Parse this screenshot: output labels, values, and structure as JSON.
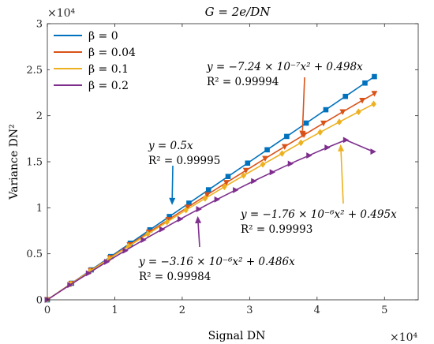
{
  "chart_data": {
    "type": "line",
    "title": "G = 2e/DN",
    "xlabel": "Signal DN",
    "ylabel": "Variance DN²",
    "x_exponent_label": "×10⁴",
    "y_exponent_label": "×10⁴",
    "xlim": [
      0,
      55000
    ],
    "ylim": [
      0,
      30000
    ],
    "x_ticks": [
      0,
      10000,
      20000,
      30000,
      40000,
      50000
    ],
    "x_tick_labels": [
      "0",
      "1",
      "2",
      "3",
      "4",
      "5"
    ],
    "y_ticks": [
      0,
      5000,
      10000,
      15000,
      20000,
      25000,
      30000
    ],
    "y_tick_labels": [
      "0",
      "0.5",
      "1",
      "1.5",
      "2",
      "2.5",
      "3"
    ],
    "grid": false,
    "legend_position": "top-left",
    "series": [
      {
        "name": "β = 0",
        "color": "#0072BD",
        "marker": "square",
        "x": [
          0,
          3600,
          6500,
          9400,
          12300,
          15200,
          18100,
          21000,
          23900,
          26800,
          29700,
          32600,
          35500,
          38400,
          41300,
          44200,
          47100,
          48500
        ],
        "y": [
          0,
          1800,
          3250,
          4700,
          6150,
          7600,
          9050,
          10500,
          11950,
          13400,
          14850,
          16300,
          17750,
          19200,
          20650,
          22100,
          23550,
          24250
        ]
      },
      {
        "name": "β = 0.04",
        "color": "#D95319",
        "marker": "triangle-down",
        "x": [
          0,
          3550,
          6450,
          9300,
          12200,
          15050,
          17950,
          20800,
          23700,
          26550,
          29450,
          32300,
          35200,
          38050,
          40950,
          43800,
          46700,
          48500
        ],
        "y": [
          0,
          1760,
          3180,
          4570,
          5970,
          7340,
          8710,
          10060,
          11410,
          12730,
          14050,
          15350,
          16640,
          17910,
          19180,
          20420,
          21660,
          22410
        ]
      },
      {
        "name": "β = 0.1",
        "color": "#EDB120",
        "marker": "diamond",
        "x": [
          0,
          3500,
          6350,
          9200,
          12050,
          14900,
          17750,
          20550,
          23400,
          26250,
          29100,
          31950,
          34800,
          37600,
          40450,
          43300,
          46150,
          48400
        ],
        "y": [
          0,
          1720,
          3100,
          4470,
          5820,
          7150,
          8460,
          9750,
          11020,
          12270,
          13500,
          14710,
          15890,
          17060,
          18200,
          19320,
          20420,
          21270
        ]
      },
      {
        "name": "β = 0.2",
        "color": "#7E2F8E",
        "marker": "triangle-right",
        "x": [
          0,
          3350,
          6100,
          8800,
          11550,
          14250,
          17000,
          19700,
          22450,
          25150,
          27900,
          30600,
          33350,
          36050,
          38800,
          41500,
          44250,
          48300
        ],
        "y": [
          0,
          1610,
          2880,
          4120,
          5340,
          6510,
          7660,
          8770,
          9850,
          10900,
          11920,
          12900,
          13860,
          14790,
          15680,
          16540,
          17370,
          16100
        ]
      }
    ],
    "annotations": [
      {
        "line1": "y = 0.5x",
        "line2": "R² = 0.99995",
        "color": "#0072BD",
        "arrow_tip": [
          18500,
          10300
        ]
      },
      {
        "line1": "y = −7.24 × 10⁻⁷x² + 0.498x",
        "line2": "R² = 0.99994",
        "color": "#D95319",
        "arrow_tip": [
          37800,
          17600
        ]
      },
      {
        "line1": "y = −1.76 × 10⁻⁶x² + 0.495x",
        "line2": "R² = 0.99993",
        "color": "#EDB120",
        "arrow_tip": [
          43500,
          16900
        ]
      },
      {
        "line1": "y = −3.16 × 10⁻⁶x² + 0.486x",
        "line2": "R² = 0.99984",
        "color": "#7E2F8E",
        "arrow_tip": [
          22300,
          9100
        ]
      }
    ]
  }
}
